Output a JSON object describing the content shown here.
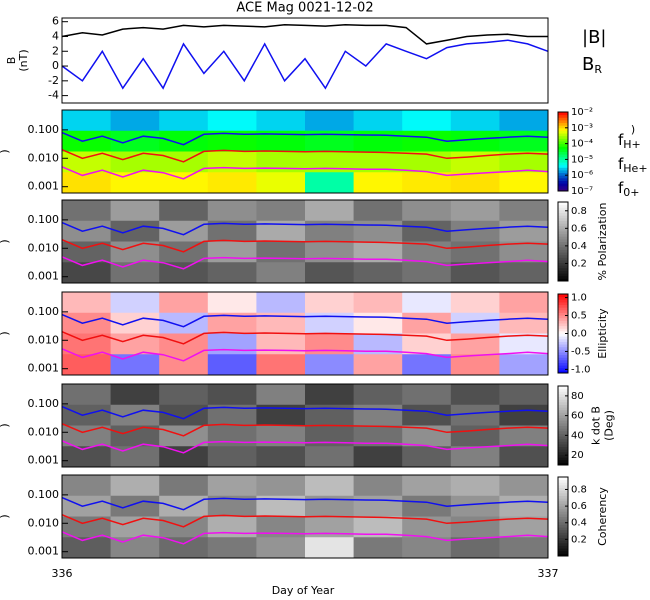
{
  "chart_data": [
    {
      "type": "line",
      "title": "ACE Mag 0021-12-02",
      "ylabel": [
        "B",
        "(nT)"
      ],
      "xlim": [
        336,
        337
      ],
      "ylim": [
        -5,
        6.5
      ],
      "yticks": [
        -4,
        -2,
        0,
        2,
        4,
        6
      ],
      "x": [
        336,
        336.042,
        336.083,
        336.125,
        336.167,
        336.208,
        336.25,
        336.292,
        336.333,
        336.375,
        336.417,
        336.458,
        336.5,
        336.542,
        336.583,
        336.625,
        336.667,
        336.708,
        336.75,
        336.792,
        336.833,
        336.875,
        336.917,
        336.958,
        337
      ],
      "series": [
        {
          "name": "|B|",
          "color": "#000000",
          "values": [
            4,
            4.5,
            4.2,
            5,
            5.2,
            5,
            5.5,
            5.3,
            5.5,
            5.4,
            5.3,
            5.6,
            5.5,
            5.4,
            5.6,
            5.5,
            5.5,
            5.2,
            3,
            3.5,
            4,
            4.2,
            4.3,
            4,
            4
          ]
        },
        {
          "name": "B",
          "subscript": "R",
          "color": "#1010f0",
          "values": [
            0,
            -2,
            2,
            -3,
            1,
            -3,
            3,
            -1,
            2,
            -2,
            3,
            -2,
            1,
            -3,
            2,
            0,
            3,
            2,
            1,
            2.5,
            3,
            3.2,
            3.5,
            3,
            2
          ]
        }
      ]
    },
    {
      "type": "heatmap",
      "ylabel": ")",
      "yscale": "log",
      "colormap": "rainbow",
      "zscale": "log",
      "zlabel": [
        ")"
      ],
      "xlim": [
        336,
        337
      ],
      "ylim": [
        0.0006,
        0.5
      ],
      "yticks": [
        {
          "value": 0.1,
          "label": "0.100"
        },
        {
          "value": 0.01,
          "label": "0.010"
        },
        0.001
      ],
      "zlim": [
        1e-07,
        0.01
      ],
      "zticks": [
        {
          "value": 0.01,
          "label": "10⁻²"
        },
        {
          "value": 0.001,
          "label": "10⁻³"
        },
        {
          "value": 0.0001,
          "label": "10⁻⁴"
        },
        {
          "value": 1e-05,
          "label": "10⁻⁵"
        },
        {
          "value": 1e-06,
          "label": "10⁻⁶"
        },
        {
          "value": 1e-07,
          "label": "10⁻⁷"
        }
      ],
      "z": [
        [
          3e-06,
          2e-06,
          3e-06,
          4e-06,
          3e-06,
          2e-06,
          3e-06,
          4e-06,
          3e-06,
          2e-06
        ],
        [
          6e-05,
          4e-05,
          5e-05,
          6e-05,
          5e-05,
          4e-05,
          5e-05,
          6e-05,
          5e-05,
          4e-05
        ],
        [
          0.0004,
          0.0003,
          0.0003,
          0.0004,
          0.0003,
          0.0003,
          0.0003,
          0.0003,
          0.0004,
          0.0003
        ],
        [
          0.001,
          0.0008,
          0.0008,
          0.0009,
          0.0006,
          1e-05,
          0.0008,
          0.0009,
          0.001,
          0.0008
        ]
      ],
      "x": [
        336,
        336.042,
        336.083,
        336.125,
        336.167,
        336.208,
        336.25,
        336.292,
        336.333,
        336.375,
        336.417,
        336.458,
        336.5,
        336.542,
        336.583,
        336.625,
        336.667,
        336.708,
        336.75,
        336.792,
        336.833,
        336.875,
        336.917,
        336.958,
        337
      ],
      "series": [
        {
          "name": "f",
          "subscript": "H+",
          "color": "#1010f0",
          "values": [
            0.08,
            0.04,
            0.06,
            0.035,
            0.06,
            0.05,
            0.03,
            0.07,
            0.075,
            0.07,
            0.072,
            0.07,
            0.068,
            0.07,
            0.068,
            0.066,
            0.065,
            0.06,
            0.055,
            0.04,
            0.045,
            0.05,
            0.055,
            0.06,
            0.055
          ]
        },
        {
          "name": "f",
          "subscript": "He+",
          "color": "#f01010",
          "values": [
            0.02,
            0.01,
            0.015,
            0.009,
            0.015,
            0.0125,
            0.0075,
            0.0175,
            0.019,
            0.0175,
            0.018,
            0.0175,
            0.017,
            0.0175,
            0.017,
            0.0165,
            0.016,
            0.015,
            0.014,
            0.01,
            0.011,
            0.0125,
            0.014,
            0.015,
            0.014
          ]
        },
        {
          "name": "f",
          "subscript": "0+",
          "color": "#f010f0",
          "values": [
            0.005,
            0.0025,
            0.0038,
            0.0022,
            0.0038,
            0.0031,
            0.0019,
            0.0044,
            0.0047,
            0.0044,
            0.0045,
            0.0044,
            0.0043,
            0.0044,
            0.0043,
            0.0041,
            0.0041,
            0.0038,
            0.0034,
            0.0025,
            0.0028,
            0.0031,
            0.0034,
            0.0038,
            0.0034
          ]
        }
      ]
    },
    {
      "type": "heatmap",
      "ylabel": ")",
      "yscale": "log",
      "colormap": "gray",
      "zlabel": [
        "% Polarization"
      ],
      "xlim": [
        336,
        337
      ],
      "ylim": [
        0.0006,
        0.5
      ],
      "yticks": [
        {
          "value": 0.1,
          "label": "0.100"
        },
        {
          "value": 0.01,
          "label": "0.010"
        },
        0.001
      ],
      "zlim": [
        0,
        0.9
      ],
      "zticks": [
        0.2,
        0.4,
        0.6,
        0.8
      ],
      "z": [
        [
          0.4,
          0.55,
          0.35,
          0.5,
          0.45,
          0.6,
          0.4,
          0.5,
          0.55,
          0.45
        ],
        [
          0.5,
          0.35,
          0.55,
          0.4,
          0.6,
          0.45,
          0.5,
          0.35,
          0.45,
          0.55
        ],
        [
          0.35,
          0.5,
          0.4,
          0.55,
          0.4,
          0.5,
          0.6,
          0.45,
          0.4,
          0.5
        ],
        [
          0.25,
          0.4,
          0.3,
          0.35,
          0.45,
          0.3,
          0.35,
          0.4,
          0.3,
          0.35
        ]
      ],
      "x": [
        336,
        336.042,
        336.083,
        336.125,
        336.167,
        336.208,
        336.25,
        336.292,
        336.333,
        336.375,
        336.417,
        336.458,
        336.5,
        336.542,
        336.583,
        336.625,
        336.667,
        336.708,
        336.75,
        336.792,
        336.833,
        336.875,
        336.917,
        336.958,
        337
      ],
      "series": [
        {
          "color": "#1010f0",
          "values": [
            0.08,
            0.04,
            0.06,
            0.035,
            0.06,
            0.05,
            0.03,
            0.07,
            0.075,
            0.07,
            0.072,
            0.07,
            0.068,
            0.07,
            0.068,
            0.066,
            0.065,
            0.06,
            0.055,
            0.04,
            0.045,
            0.05,
            0.055,
            0.06,
            0.055
          ]
        },
        {
          "color": "#f01010",
          "values": [
            0.02,
            0.01,
            0.015,
            0.009,
            0.015,
            0.0125,
            0.0075,
            0.0175,
            0.019,
            0.0175,
            0.018,
            0.0175,
            0.017,
            0.0175,
            0.017,
            0.0165,
            0.016,
            0.015,
            0.014,
            0.01,
            0.011,
            0.0125,
            0.014,
            0.015,
            0.014
          ]
        },
        {
          "color": "#f010f0",
          "values": [
            0.005,
            0.0025,
            0.0038,
            0.0022,
            0.0038,
            0.0031,
            0.0019,
            0.0044,
            0.0047,
            0.0044,
            0.0045,
            0.0044,
            0.0043,
            0.0044,
            0.0043,
            0.0041,
            0.0041,
            0.0038,
            0.0034,
            0.0025,
            0.0028,
            0.0031,
            0.0034,
            0.0038,
            0.0034
          ]
        }
      ]
    },
    {
      "type": "heatmap",
      "ylabel": ")",
      "yscale": "log",
      "colormap": "bwr",
      "zlabel": [
        "Ellipticity"
      ],
      "xlim": [
        336,
        337
      ],
      "ylim": [
        0.0006,
        0.5
      ],
      "yticks": [
        {
          "value": 0.1,
          "label": "0.100"
        },
        {
          "value": 0.01,
          "label": "0.010"
        },
        0.001
      ],
      "zlim": [
        -1.1,
        1.1
      ],
      "zticks": [
        {
          "value": 1,
          "label": "1.0"
        },
        0.5,
        {
          "value": 0,
          "label": "0.0"
        },
        -0.5,
        {
          "value": -1,
          "label": "-1.0"
        }
      ],
      "z": [
        [
          0.3,
          -0.2,
          0.4,
          0.1,
          -0.3,
          0.2,
          0.3,
          -0.1,
          0.2,
          0.4
        ],
        [
          0.5,
          0.2,
          -0.3,
          0.4,
          0.3,
          -0.2,
          0.1,
          0.4,
          -0.2,
          0.3
        ],
        [
          0.6,
          0.4,
          0.5,
          -0.4,
          0.3,
          0.5,
          -0.3,
          0.2,
          0.4,
          -0.1
        ],
        [
          0.7,
          -0.6,
          0.5,
          -0.7,
          0.6,
          -0.5,
          0.4,
          -0.6,
          0.5,
          -0.4
        ]
      ],
      "x": [
        336,
        336.042,
        336.083,
        336.125,
        336.167,
        336.208,
        336.25,
        336.292,
        336.333,
        336.375,
        336.417,
        336.458,
        336.5,
        336.542,
        336.583,
        336.625,
        336.667,
        336.708,
        336.75,
        336.792,
        336.833,
        336.875,
        336.917,
        336.958,
        337
      ],
      "series": [
        {
          "color": "#1010f0",
          "values": [
            0.08,
            0.04,
            0.06,
            0.035,
            0.06,
            0.05,
            0.03,
            0.07,
            0.075,
            0.07,
            0.072,
            0.07,
            0.068,
            0.07,
            0.068,
            0.066,
            0.065,
            0.06,
            0.055,
            0.04,
            0.045,
            0.05,
            0.055,
            0.06,
            0.055
          ]
        },
        {
          "color": "#f01010",
          "values": [
            0.02,
            0.01,
            0.015,
            0.009,
            0.015,
            0.0125,
            0.0075,
            0.0175,
            0.019,
            0.0175,
            0.018,
            0.0175,
            0.017,
            0.0175,
            0.017,
            0.0165,
            0.016,
            0.015,
            0.014,
            0.01,
            0.011,
            0.0125,
            0.014,
            0.015,
            0.014
          ]
        },
        {
          "color": "#f010f0",
          "values": [
            0.005,
            0.0025,
            0.0038,
            0.0022,
            0.0038,
            0.0031,
            0.0019,
            0.0044,
            0.0047,
            0.0044,
            0.0045,
            0.0044,
            0.0043,
            0.0044,
            0.0043,
            0.0041,
            0.0041,
            0.0038,
            0.0034,
            0.0025,
            0.0028,
            0.0031,
            0.0034,
            0.0038,
            0.0034
          ]
        }
      ]
    },
    {
      "type": "heatmap",
      "ylabel": ")",
      "yscale": "log",
      "colormap": "gray",
      "zlabel": [
        "k dot B",
        "(Deg)"
      ],
      "xlim": [
        336,
        337
      ],
      "ylim": [
        0.0006,
        0.5
      ],
      "yticks": [
        {
          "value": 0.1,
          "label": "0.100"
        },
        {
          "value": 0.01,
          "label": "0.010"
        },
        0.001
      ],
      "zlim": [
        10,
        90
      ],
      "zticks": [
        20,
        40,
        60,
        80
      ],
      "z": [
        [
          45,
          30,
          40,
          35,
          50,
          30,
          40,
          45,
          35,
          40
        ],
        [
          40,
          50,
          35,
          45,
          30,
          40,
          50,
          35,
          45,
          30
        ],
        [
          50,
          40,
          55,
          45,
          50,
          40,
          45,
          55,
          40,
          50
        ],
        [
          35,
          45,
          30,
          40,
          35,
          45,
          30,
          40,
          50,
          35
        ]
      ],
      "x": [
        336,
        336.042,
        336.083,
        336.125,
        336.167,
        336.208,
        336.25,
        336.292,
        336.333,
        336.375,
        336.417,
        336.458,
        336.5,
        336.542,
        336.583,
        336.625,
        336.667,
        336.708,
        336.75,
        336.792,
        336.833,
        336.875,
        336.917,
        336.958,
        337
      ],
      "series": [
        {
          "color": "#1010f0",
          "values": [
            0.08,
            0.04,
            0.06,
            0.035,
            0.06,
            0.05,
            0.03,
            0.07,
            0.075,
            0.07,
            0.072,
            0.07,
            0.068,
            0.07,
            0.068,
            0.066,
            0.065,
            0.06,
            0.055,
            0.04,
            0.045,
            0.05,
            0.055,
            0.06,
            0.055
          ]
        },
        {
          "color": "#f01010",
          "values": [
            0.02,
            0.01,
            0.015,
            0.009,
            0.015,
            0.0125,
            0.0075,
            0.0175,
            0.019,
            0.0175,
            0.018,
            0.0175,
            0.017,
            0.0175,
            0.017,
            0.0165,
            0.016,
            0.015,
            0.014,
            0.01,
            0.011,
            0.0125,
            0.014,
            0.015,
            0.014
          ]
        },
        {
          "color": "#f010f0",
          "values": [
            0.005,
            0.0025,
            0.0038,
            0.0022,
            0.0038,
            0.0031,
            0.0019,
            0.0044,
            0.0047,
            0.0044,
            0.0045,
            0.0044,
            0.0043,
            0.0044,
            0.0043,
            0.0041,
            0.0041,
            0.0038,
            0.0034,
            0.0025,
            0.0028,
            0.0031,
            0.0034,
            0.0038,
            0.0034
          ]
        }
      ]
    },
    {
      "type": "heatmap",
      "ylabel": ")",
      "yscale": "log",
      "colormap": "gray",
      "zlabel": [
        "Coherency"
      ],
      "xlabel": "Day of Year",
      "xticks": [
        336,
        337
      ],
      "xlim": [
        336,
        337
      ],
      "ylim": [
        0.0006,
        0.5
      ],
      "yticks": [
        {
          "value": 0.1,
          "label": "0.100"
        },
        {
          "value": 0.01,
          "label": "0.010"
        },
        0.001
      ],
      "zlim": [
        0,
        0.95
      ],
      "zticks": [
        0.2,
        0.4,
        0.6,
        0.8
      ],
      "z": [
        [
          0.5,
          0.65,
          0.45,
          0.6,
          0.55,
          0.7,
          0.5,
          0.6,
          0.65,
          0.55
        ],
        [
          0.6,
          0.45,
          0.65,
          0.5,
          0.7,
          0.55,
          0.6,
          0.45,
          0.55,
          0.65
        ],
        [
          0.45,
          0.6,
          0.5,
          0.65,
          0.5,
          0.6,
          0.7,
          0.55,
          0.5,
          0.6
        ],
        [
          0.35,
          0.5,
          0.4,
          0.45,
          0.55,
          0.85,
          0.45,
          0.5,
          0.4,
          0.45
        ]
      ],
      "x": [
        336,
        336.042,
        336.083,
        336.125,
        336.167,
        336.208,
        336.25,
        336.292,
        336.333,
        336.375,
        336.417,
        336.458,
        336.5,
        336.542,
        336.583,
        336.625,
        336.667,
        336.708,
        336.75,
        336.792,
        336.833,
        336.875,
        336.917,
        336.958,
        337
      ],
      "series": [
        {
          "color": "#1010f0",
          "values": [
            0.08,
            0.04,
            0.06,
            0.035,
            0.06,
            0.05,
            0.03,
            0.07,
            0.075,
            0.07,
            0.072,
            0.07,
            0.068,
            0.07,
            0.068,
            0.066,
            0.065,
            0.06,
            0.055,
            0.04,
            0.045,
            0.05,
            0.055,
            0.06,
            0.055
          ]
        },
        {
          "color": "#f01010",
          "values": [
            0.02,
            0.01,
            0.015,
            0.009,
            0.015,
            0.0125,
            0.0075,
            0.0175,
            0.019,
            0.0175,
            0.018,
            0.0175,
            0.017,
            0.0175,
            0.017,
            0.0165,
            0.016,
            0.015,
            0.014,
            0.01,
            0.011,
            0.0125,
            0.014,
            0.015,
            0.014
          ]
        },
        {
          "color": "#f010f0",
          "values": [
            0.005,
            0.0025,
            0.0038,
            0.0022,
            0.0038,
            0.0031,
            0.0019,
            0.0044,
            0.0047,
            0.0044,
            0.0045,
            0.0044,
            0.0043,
            0.0044,
            0.0043,
            0.0041,
            0.0041,
            0.0038,
            0.0034,
            0.0025,
            0.0028,
            0.0031,
            0.0034,
            0.0038,
            0.0034
          ]
        }
      ]
    }
  ]
}
